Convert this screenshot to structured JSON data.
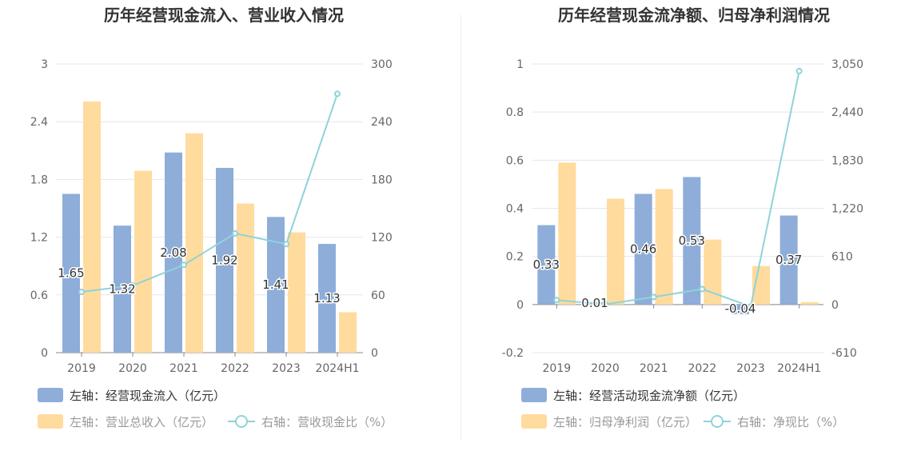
{
  "chart_data": [
    {
      "type": "bar",
      "title": "历年经营现金流入、营业收入情况",
      "categories": [
        "2019",
        "2020",
        "2021",
        "2022",
        "2023",
        "2024H1"
      ],
      "y_left": {
        "ticks": [
          "0",
          "0.6",
          "1.2",
          "1.8",
          "2.4",
          "3"
        ],
        "range": [
          0,
          3
        ]
      },
      "y_right": {
        "ticks": [
          "0",
          "60",
          "120",
          "180",
          "240",
          "300"
        ],
        "range": [
          0,
          300
        ]
      },
      "series": [
        {
          "name": "左轴：经营现金流入（亿元）",
          "type": "bar",
          "axis": "left",
          "color": "#8eadd9",
          "values": [
            1.65,
            1.32,
            2.08,
            1.92,
            1.41,
            1.13
          ],
          "labels": [
            "1.65",
            "1.32",
            "2.08",
            "1.92",
            "1.41",
            "1.13"
          ]
        },
        {
          "name": "左轴：营业总收入（亿元）",
          "type": "bar",
          "axis": "left",
          "color": "#ffdb9e",
          "values": [
            2.61,
            1.89,
            2.28,
            1.55,
            1.25,
            0.42
          ]
        },
        {
          "name": "右轴：营收现金比（%）",
          "type": "line",
          "axis": "right",
          "color": "#8ed3d9",
          "values": [
            63.2,
            69.8,
            91.2,
            123.9,
            112.8,
            269.0
          ]
        }
      ]
    },
    {
      "type": "bar",
      "title": "历年经营现金流净额、归母净利润情况",
      "categories": [
        "2019",
        "2020",
        "2021",
        "2022",
        "2023",
        "2024H1"
      ],
      "y_left": {
        "ticks": [
          "-0.2",
          "0",
          "0.2",
          "0.4",
          "0.6",
          "0.8",
          "1"
        ],
        "range": [
          -0.2,
          1
        ]
      },
      "y_right": {
        "ticks": [
          "-610",
          "0",
          "610",
          "1,220",
          "1,830",
          "2,440",
          "3,050"
        ],
        "range": [
          -610,
          3050
        ]
      },
      "series": [
        {
          "name": "左轴：经营活动现金流净额（亿元）",
          "type": "bar",
          "axis": "left",
          "color": "#8eadd9",
          "values": [
            0.33,
            0.01,
            0.46,
            0.53,
            -0.04,
            0.37
          ],
          "labels": [
            "0.33",
            "0.01",
            "0.46",
            "0.53",
            "-0.04",
            "0.37"
          ]
        },
        {
          "name": "左轴：归母净利润（亿元）",
          "type": "bar",
          "axis": "left",
          "color": "#ffdb9e",
          "values": [
            0.59,
            0.44,
            0.48,
            0.27,
            0.16,
            0.01
          ]
        },
        {
          "name": "右轴：净现比（%）",
          "type": "line",
          "axis": "right",
          "color": "#8ed3d9",
          "values": [
            56,
            2.3,
            96,
            196,
            -25,
            2960
          ]
        }
      ]
    }
  ]
}
